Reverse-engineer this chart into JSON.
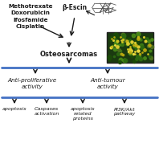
{
  "bg_color": "#ffffff",
  "blue_line_color": "#4472c4",
  "arrow_color": "#1a1a1a",
  "text_color": "#1a1a1a",
  "drugs_text": "Methotrexate\nDoxorubicin\nIfosfamide\nCisplatin",
  "beta_escin_text": "β-Escin",
  "osteosarcomas_text": "Osteosarcomas",
  "anti_prolif_text": "Anti-proliferative\nactivity",
  "anti_tumour_text": "Anti-tumour\nactivity",
  "bottom_labels": [
    "apoptosis",
    "Caspases\nactivation",
    "apoptosis\nrelated\nproteins",
    "PI3K/Akt\npathway"
  ],
  "fig_width": 1.98,
  "fig_height": 1.89,
  "dpi": 100
}
